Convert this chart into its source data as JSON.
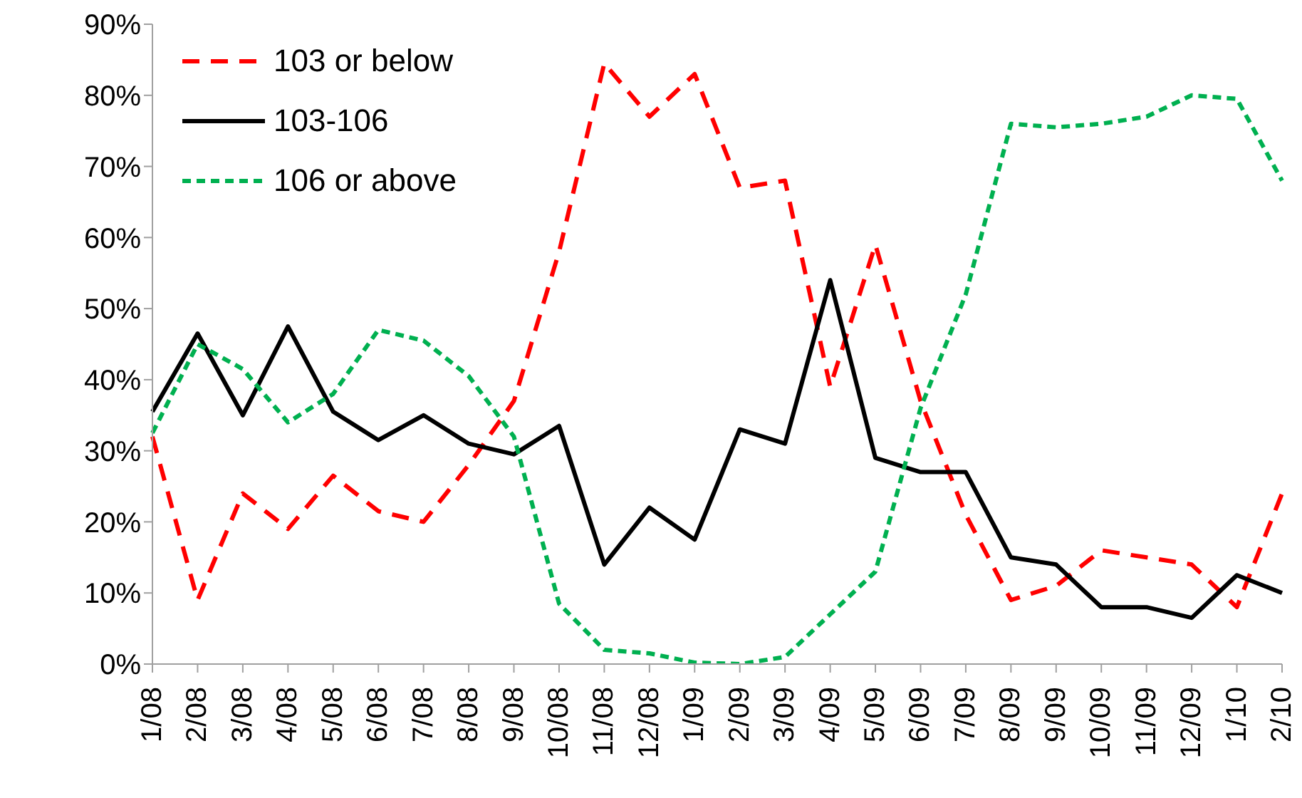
{
  "chart_data": {
    "type": "line",
    "categories": [
      "1/08",
      "2/08",
      "3/08",
      "4/08",
      "5/08",
      "6/08",
      "7/08",
      "8/08",
      "9/08",
      "10/08",
      "11/08",
      "12/08",
      "1/09",
      "2/09",
      "3/09",
      "4/09",
      "5/09",
      "6/09",
      "7/09",
      "8/09",
      "9/09",
      "10/09",
      "11/09",
      "12/09",
      "1/10",
      "2/10"
    ],
    "series": [
      {
        "name": "103 or below",
        "color": "#ff0000",
        "line_style": "dashed",
        "values": [
          32,
          9,
          24,
          19,
          26.5,
          21.5,
          20,
          28,
          37,
          58,
          84.5,
          77,
          83,
          67,
          68,
          39,
          59,
          37,
          21,
          9,
          11,
          16,
          15,
          14,
          8,
          24
        ]
      },
      {
        "name": "103-106",
        "color": "#000000",
        "line_style": "solid",
        "values": [
          35.5,
          46.5,
          35,
          47.5,
          35.5,
          31.5,
          35,
          31,
          29.5,
          33.5,
          14,
          22,
          17.5,
          33,
          31,
          54,
          29,
          27,
          27,
          15,
          14,
          8,
          8,
          6.5,
          12.5,
          10
        ]
      },
      {
        "name": "106 or above",
        "color": "#00b050",
        "line_style": "dotted",
        "values": [
          32.5,
          45,
          41.5,
          34,
          38,
          47,
          45.5,
          40.5,
          32,
          8.5,
          2,
          1.5,
          0.2,
          0,
          1,
          7,
          13,
          36,
          52,
          76,
          75.5,
          76,
          77,
          80,
          79.5,
          68
        ]
      }
    ],
    "ylim": [
      0,
      90
    ],
    "yticks": [
      {
        "value": 0,
        "label": "0%"
      },
      {
        "value": 10,
        "label": "10%"
      },
      {
        "value": 20,
        "label": "20%"
      },
      {
        "value": 30,
        "label": "30%"
      },
      {
        "value": 40,
        "label": "40%"
      },
      {
        "value": 50,
        "label": "50%"
      },
      {
        "value": 60,
        "label": "60%"
      },
      {
        "value": 70,
        "label": "70%"
      },
      {
        "value": 80,
        "label": "80%"
      },
      {
        "value": 90,
        "label": "90%"
      }
    ],
    "legend": "top left",
    "marker": "none",
    "grid": false
  }
}
